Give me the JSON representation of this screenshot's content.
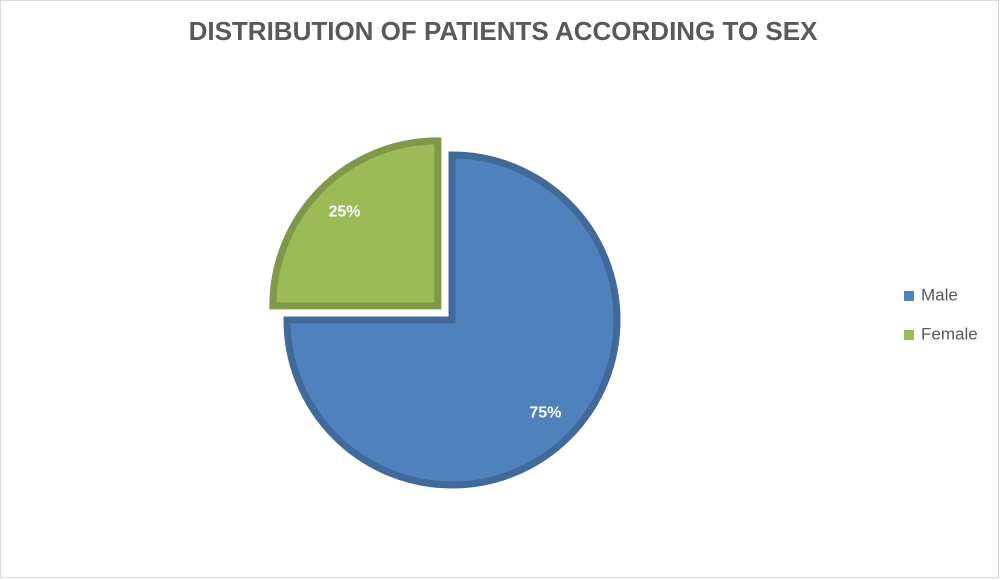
{
  "chart_data": {
    "type": "pie",
    "title": "DISTRIBUTION OF PATIENTS ACCORDING TO SEX",
    "categories": [
      "Male",
      "Female"
    ],
    "values": [
      75,
      25
    ],
    "value_labels": [
      "75%",
      "25%"
    ],
    "colors": [
      "#4f81bd",
      "#9bbb59"
    ],
    "explode": [
      false,
      true
    ],
    "legend": "right"
  }
}
